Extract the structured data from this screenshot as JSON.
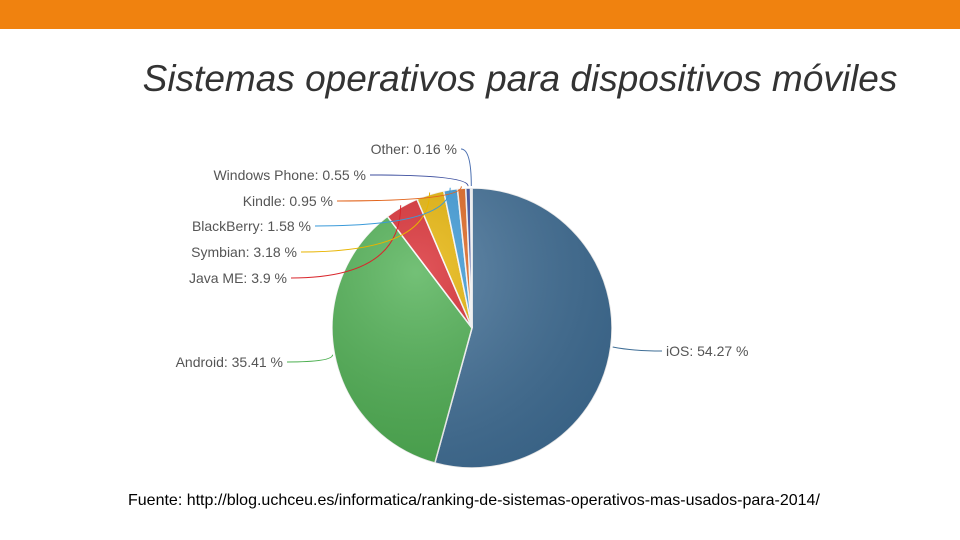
{
  "slide": {
    "title": "Sistemas operativos para dispositivos móviles",
    "accent_color": "#F0820F",
    "source_note": "Fuente: http://blog.uchceu.es/informatica/ranking-de-sistemas-operativos-mas-usados-para-2014/"
  },
  "chart_data": {
    "type": "pie",
    "title": "",
    "unit": "%",
    "slices": [
      {
        "label": "iOS: 54.27 %",
        "value": 54.27,
        "color": "#3F6E96"
      },
      {
        "label": "Android: 35.41 %",
        "value": 35.41,
        "color": "#4CAF50"
      },
      {
        "label": "Java ME: 3.9 %",
        "value": 3.9,
        "color": "#D9262C"
      },
      {
        "label": "Symbian: 3.18 %",
        "value": 3.18,
        "color": "#E8B400"
      },
      {
        "label": "BlackBerry: 1.58 %",
        "value": 1.58,
        "color": "#3A9AD9"
      },
      {
        "label": "Kindle: 0.95 %",
        "value": 0.95,
        "color": "#E2651D"
      },
      {
        "label": "Windows Phone: 0.55 %",
        "value": 0.55,
        "color": "#3C4E9E"
      },
      {
        "label": "Other: 0.16 %",
        "value": 0.16,
        "color": "#4A6FB0"
      }
    ],
    "legend": "none"
  }
}
